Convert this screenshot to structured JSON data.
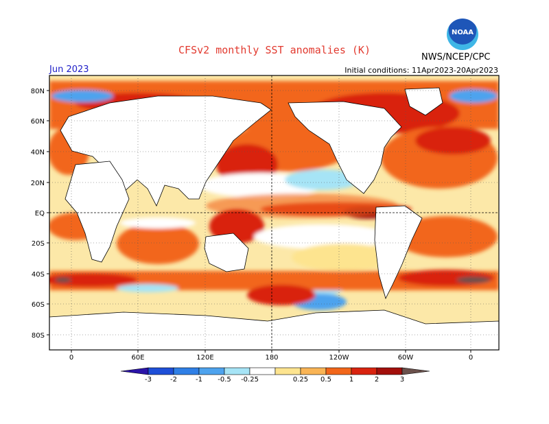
{
  "header": {
    "title": "CFSv2 monthly SST anomalies (K)",
    "agency": "NWS/NCEP/CPC",
    "logo_text": "NOAA",
    "month": "Jun 2023",
    "initial_conditions": "Initial conditions: 11Apr2023-20Apr2023"
  },
  "axes": {
    "lat_labels": [
      "80N",
      "60N",
      "40N",
      "20N",
      "EQ",
      "20S",
      "40S",
      "60S",
      "80S"
    ],
    "lon_labels": [
      "0",
      "60E",
      "120E",
      "180",
      "120W",
      "60W",
      "0"
    ]
  },
  "colorbar": {
    "ticks": [
      "-3",
      "-2",
      "-1",
      "-0.5",
      "-0.25",
      "0.25",
      "0.5",
      "1",
      "2",
      "3"
    ],
    "colors": [
      "#2b14a8",
      "#1e4fd8",
      "#2f7fe6",
      "#4ea3ee",
      "#a6e4f6",
      "#ffffff",
      "#fde48f",
      "#f9b455",
      "#f2661a",
      "#d9230f",
      "#a30f0b",
      "#6b514c"
    ]
  }
}
